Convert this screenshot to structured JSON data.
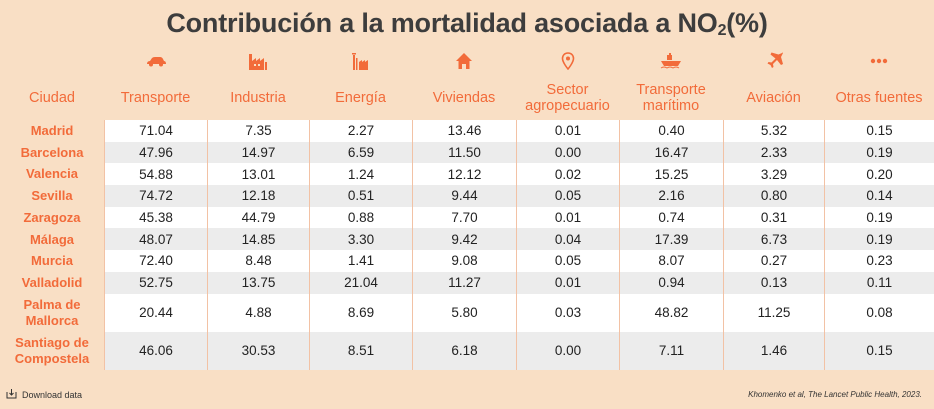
{
  "title_main": "Contribución a la mortalidad asociada a NO",
  "title_sub": "2",
  "title_suffix": "(%)",
  "columns": [
    {
      "label": "Ciudad",
      "icon": ""
    },
    {
      "label": "Transporte",
      "icon": "car-icon"
    },
    {
      "label": "Industria",
      "icon": "factory-icon"
    },
    {
      "label": "Energía",
      "icon": "power-plant-icon"
    },
    {
      "label": "Viviendas",
      "icon": "house-icon"
    },
    {
      "label": "Sector agropecuario",
      "icon": "location-pin-icon"
    },
    {
      "label": "Transporte marítimo",
      "icon": "ship-icon"
    },
    {
      "label": "Aviación",
      "icon": "airplane-icon"
    },
    {
      "label": "Otras fuentes",
      "icon": "more-dots-icon"
    }
  ],
  "colors": {
    "accent": "#f26b3a",
    "background": "#f9dfc5",
    "row_alt": "#ececec",
    "row": "#ffffff"
  },
  "chart_data": {
    "type": "table",
    "title": "Contribución a la mortalidad asociada a NO2(%)",
    "headers": [
      "Ciudad",
      "Transporte",
      "Industria",
      "Energía",
      "Viviendas",
      "Sector agropecuario",
      "Transporte marítimo",
      "Aviación",
      "Otras fuentes"
    ],
    "rows": [
      [
        "Madrid",
        "71.04",
        "7.35",
        "2.27",
        "13.46",
        "0.01",
        "0.40",
        "5.32",
        "0.15"
      ],
      [
        "Barcelona",
        "47.96",
        "14.97",
        "6.59",
        "11.50",
        "0.00",
        "16.47",
        "2.33",
        "0.19"
      ],
      [
        "Valencia",
        "54.88",
        "13.01",
        "1.24",
        "12.12",
        "0.02",
        "15.25",
        "3.29",
        "0.20"
      ],
      [
        "Sevilla",
        "74.72",
        "12.18",
        "0.51",
        "9.44",
        "0.05",
        "2.16",
        "0.80",
        "0.14"
      ],
      [
        "Zaragoza",
        "45.38",
        "44.79",
        "0.88",
        "7.70",
        "0.01",
        "0.74",
        "0.31",
        "0.19"
      ],
      [
        "Málaga",
        "48.07",
        "14.85",
        "3.30",
        "9.42",
        "0.04",
        "17.39",
        "6.73",
        "0.19"
      ],
      [
        "Murcia",
        "72.40",
        "8.48",
        "1.41",
        "9.08",
        "0.05",
        "8.07",
        "0.27",
        "0.23"
      ],
      [
        "Valladolid",
        "52.75",
        "13.75",
        "21.04",
        "11.27",
        "0.01",
        "0.94",
        "0.13",
        "0.11"
      ],
      [
        "Palma de Mallorca",
        "20.44",
        "4.88",
        "8.69",
        "5.80",
        "0.03",
        "48.82",
        "11.25",
        "0.08"
      ],
      [
        "Santiago de Compostela",
        "46.06",
        "30.53",
        "8.51",
        "6.18",
        "0.00",
        "7.11",
        "1.46",
        "0.15"
      ]
    ]
  },
  "footer": {
    "download_label": "Download data",
    "source": "Khomenko et al, The Lancet Public Health, 2023."
  }
}
